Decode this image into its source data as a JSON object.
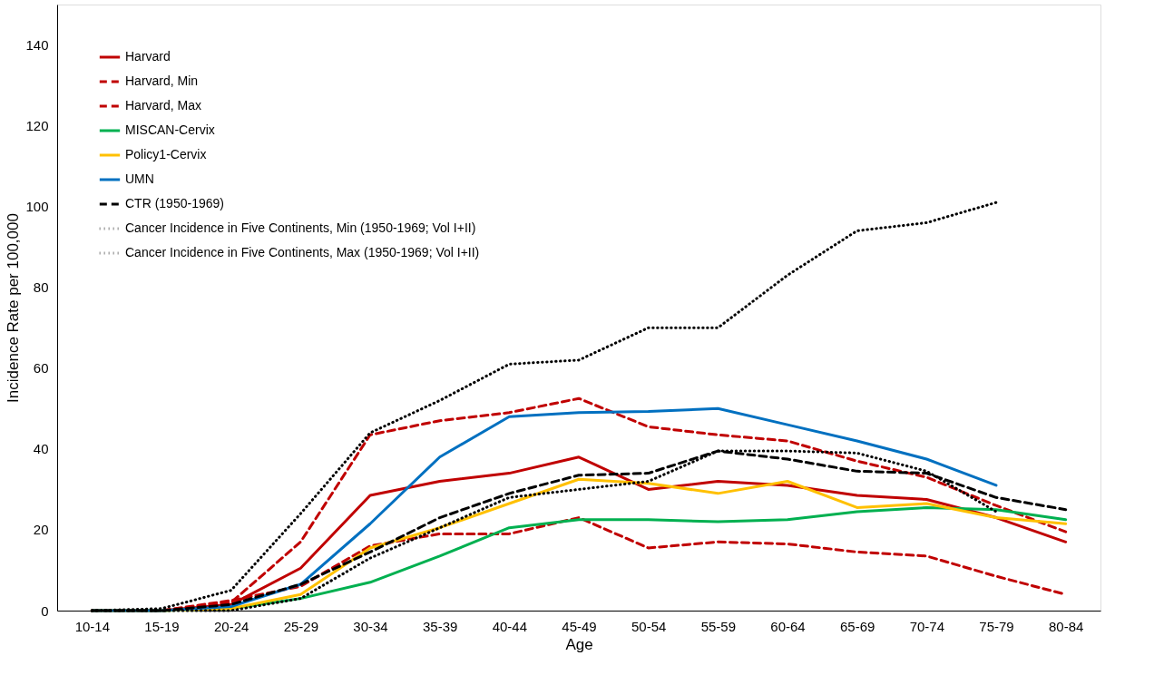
{
  "chart_data": {
    "type": "line",
    "xlabel": "Age",
    "ylabel": "Incidence Rate per 100,000",
    "categories": [
      "10-14",
      "15-19",
      "20-24",
      "25-29",
      "30-34",
      "35-39",
      "40-44",
      "45-49",
      "50-54",
      "55-59",
      "60-64",
      "65-69",
      "70-74",
      "75-79",
      "80-84"
    ],
    "ylim": [
      0,
      150
    ],
    "yticks": [
      0,
      20,
      40,
      60,
      80,
      100,
      120,
      140
    ],
    "grid": false,
    "legend": "top left",
    "marker": "none",
    "series": [
      {
        "name": "Harvard",
        "color": "#c00000",
        "line_style": "solid",
        "values": [
          0,
          0,
          1.5,
          10.5,
          28.5,
          32,
          34,
          38,
          30,
          32,
          31,
          28.5,
          27.5,
          23,
          17
        ]
      },
      {
        "name": "Harvard, Min",
        "color": "#c00000",
        "line_style": "dashed",
        "values": [
          0,
          0,
          2.5,
          6,
          16,
          19,
          19,
          23,
          15.5,
          17,
          16.5,
          14.5,
          13.5,
          8.5,
          4
        ]
      },
      {
        "name": "Harvard, Max",
        "color": "#c00000",
        "line_style": "dashed",
        "values": [
          0,
          0,
          2,
          17,
          43.5,
          47,
          49,
          52.5,
          45.5,
          43.5,
          42,
          37,
          33,
          26,
          19.5
        ]
      },
      {
        "name": "MISCAN-Cervix",
        "color": "#00b050",
        "line_style": "solid",
        "values": [
          0,
          0,
          0.5,
          3,
          7,
          13.5,
          20.5,
          22.5,
          22.5,
          22,
          22.5,
          24.5,
          25.5,
          25,
          22.5
        ]
      },
      {
        "name": "Policy1-Cervix",
        "color": "#ffc000",
        "line_style": "solid",
        "values": [
          0,
          0,
          0.5,
          4,
          15.5,
          20.5,
          26.5,
          32.5,
          31.5,
          29,
          32,
          25.5,
          26.5,
          23,
          21.5
        ]
      },
      {
        "name": "UMN",
        "color": "#0070c0",
        "line_style": "solid",
        "values": [
          0,
          0,
          1,
          6.5,
          21.5,
          38,
          48,
          49,
          49.3,
          50,
          46,
          42,
          37.5,
          31,
          null
        ]
      },
      {
        "name": "CTR (1950-1969)",
        "color": "#000000",
        "line_style": "dashed",
        "values": [
          0,
          0,
          1.5,
          6.5,
          14.5,
          23,
          29,
          33.5,
          34,
          39.5,
          37.5,
          34.5,
          34,
          28,
          25
        ]
      },
      {
        "name": "Cancer Incidence in Five Continents, Min (1950-1969; Vol I+II)",
        "color": "#000000",
        "line_style": "dotted",
        "values": [
          0,
          0,
          0,
          3,
          13,
          20.5,
          28,
          30,
          32,
          39.5,
          39.5,
          39,
          34.5,
          24.5,
          null
        ]
      },
      {
        "name": "Cancer Incidence in Five Continents, Max (1950-1969; Vol I+II)",
        "color": "#000000",
        "line_style": "dotted",
        "values": [
          0,
          0.5,
          5,
          24,
          44,
          52,
          61,
          62,
          70,
          70,
          83,
          94,
          96,
          101,
          null
        ]
      }
    ]
  }
}
